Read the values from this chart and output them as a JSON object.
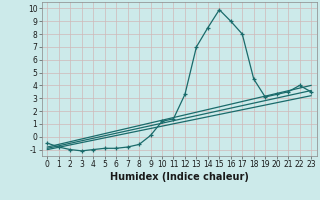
{
  "xlabel": "Humidex (Indice chaleur)",
  "ylabel": "",
  "bg_color": "#cceaea",
  "grid_color": "#b8d8d8",
  "line_color": "#1a6b6b",
  "xlim": [
    -0.5,
    23.5
  ],
  "ylim": [
    -1.5,
    10.5
  ],
  "xticks": [
    0,
    1,
    2,
    3,
    4,
    5,
    6,
    7,
    8,
    9,
    10,
    11,
    12,
    13,
    14,
    15,
    16,
    17,
    18,
    19,
    20,
    21,
    22,
    23
  ],
  "yticks": [
    -1,
    0,
    1,
    2,
    3,
    4,
    5,
    6,
    7,
    8,
    9,
    10
  ],
  "series": [
    [
      0,
      -0.5
    ],
    [
      1,
      -0.8
    ],
    [
      2,
      -1.0
    ],
    [
      3,
      -1.1
    ],
    [
      4,
      -1.0
    ],
    [
      5,
      -0.9
    ],
    [
      6,
      -0.9
    ],
    [
      7,
      -0.8
    ],
    [
      8,
      -0.6
    ],
    [
      9,
      0.1
    ],
    [
      10,
      1.2
    ],
    [
      11,
      1.4
    ],
    [
      12,
      3.3
    ],
    [
      13,
      7.0
    ],
    [
      14,
      8.5
    ],
    [
      15,
      9.9
    ],
    [
      16,
      9.0
    ],
    [
      17,
      8.0
    ],
    [
      18,
      4.5
    ],
    [
      19,
      3.1
    ],
    [
      20,
      3.3
    ],
    [
      21,
      3.5
    ],
    [
      22,
      4.0
    ],
    [
      23,
      3.5
    ]
  ],
  "lines": [
    {
      "x": [
        0,
        23
      ],
      "y": [
        -0.8,
        4.0
      ]
    },
    {
      "x": [
        0,
        23
      ],
      "y": [
        -0.9,
        3.6
      ]
    },
    {
      "x": [
        0,
        23
      ],
      "y": [
        -1.0,
        3.2
      ]
    }
  ],
  "tick_fontsize": 5.5,
  "xlabel_fontsize": 7
}
